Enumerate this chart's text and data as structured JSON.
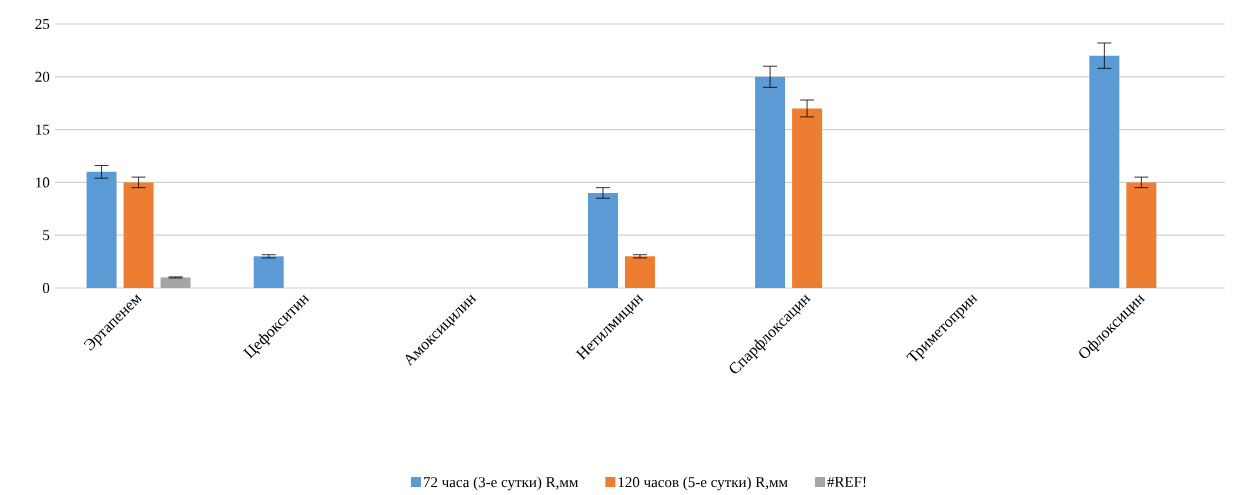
{
  "chart_data": {
    "type": "bar",
    "categories": [
      "Эртапенем",
      "Цефокситин",
      "Амоксицилин",
      "Нетилмицин",
      "Спарфлоксацин",
      "Триметоприн",
      "Офлоксицин"
    ],
    "series": [
      {
        "name": "72 часа (3-е сутки) R,мм",
        "color": "#5b9bd5",
        "values": [
          11,
          3,
          null,
          9,
          20,
          null,
          22
        ],
        "errors": [
          0.6,
          0.15,
          null,
          0.5,
          1,
          null,
          1.2
        ]
      },
      {
        "name": "120 часов (5-е сутки) R,мм",
        "color": "#ed7d31",
        "values": [
          10,
          null,
          null,
          3,
          17,
          null,
          10
        ],
        "errors": [
          0.5,
          null,
          null,
          0.15,
          0.8,
          null,
          0.5
        ]
      },
      {
        "name": "#REF!",
        "color": "#a5a5a5",
        "values": [
          1,
          null,
          null,
          null,
          null,
          null,
          null
        ],
        "errors": [
          0.05,
          null,
          null,
          null,
          null,
          null,
          null
        ]
      }
    ],
    "ylim": [
      0,
      25
    ],
    "yticks": [
      0,
      5,
      10,
      15,
      20,
      25
    ],
    "grid": "y",
    "legend": "bottom"
  }
}
